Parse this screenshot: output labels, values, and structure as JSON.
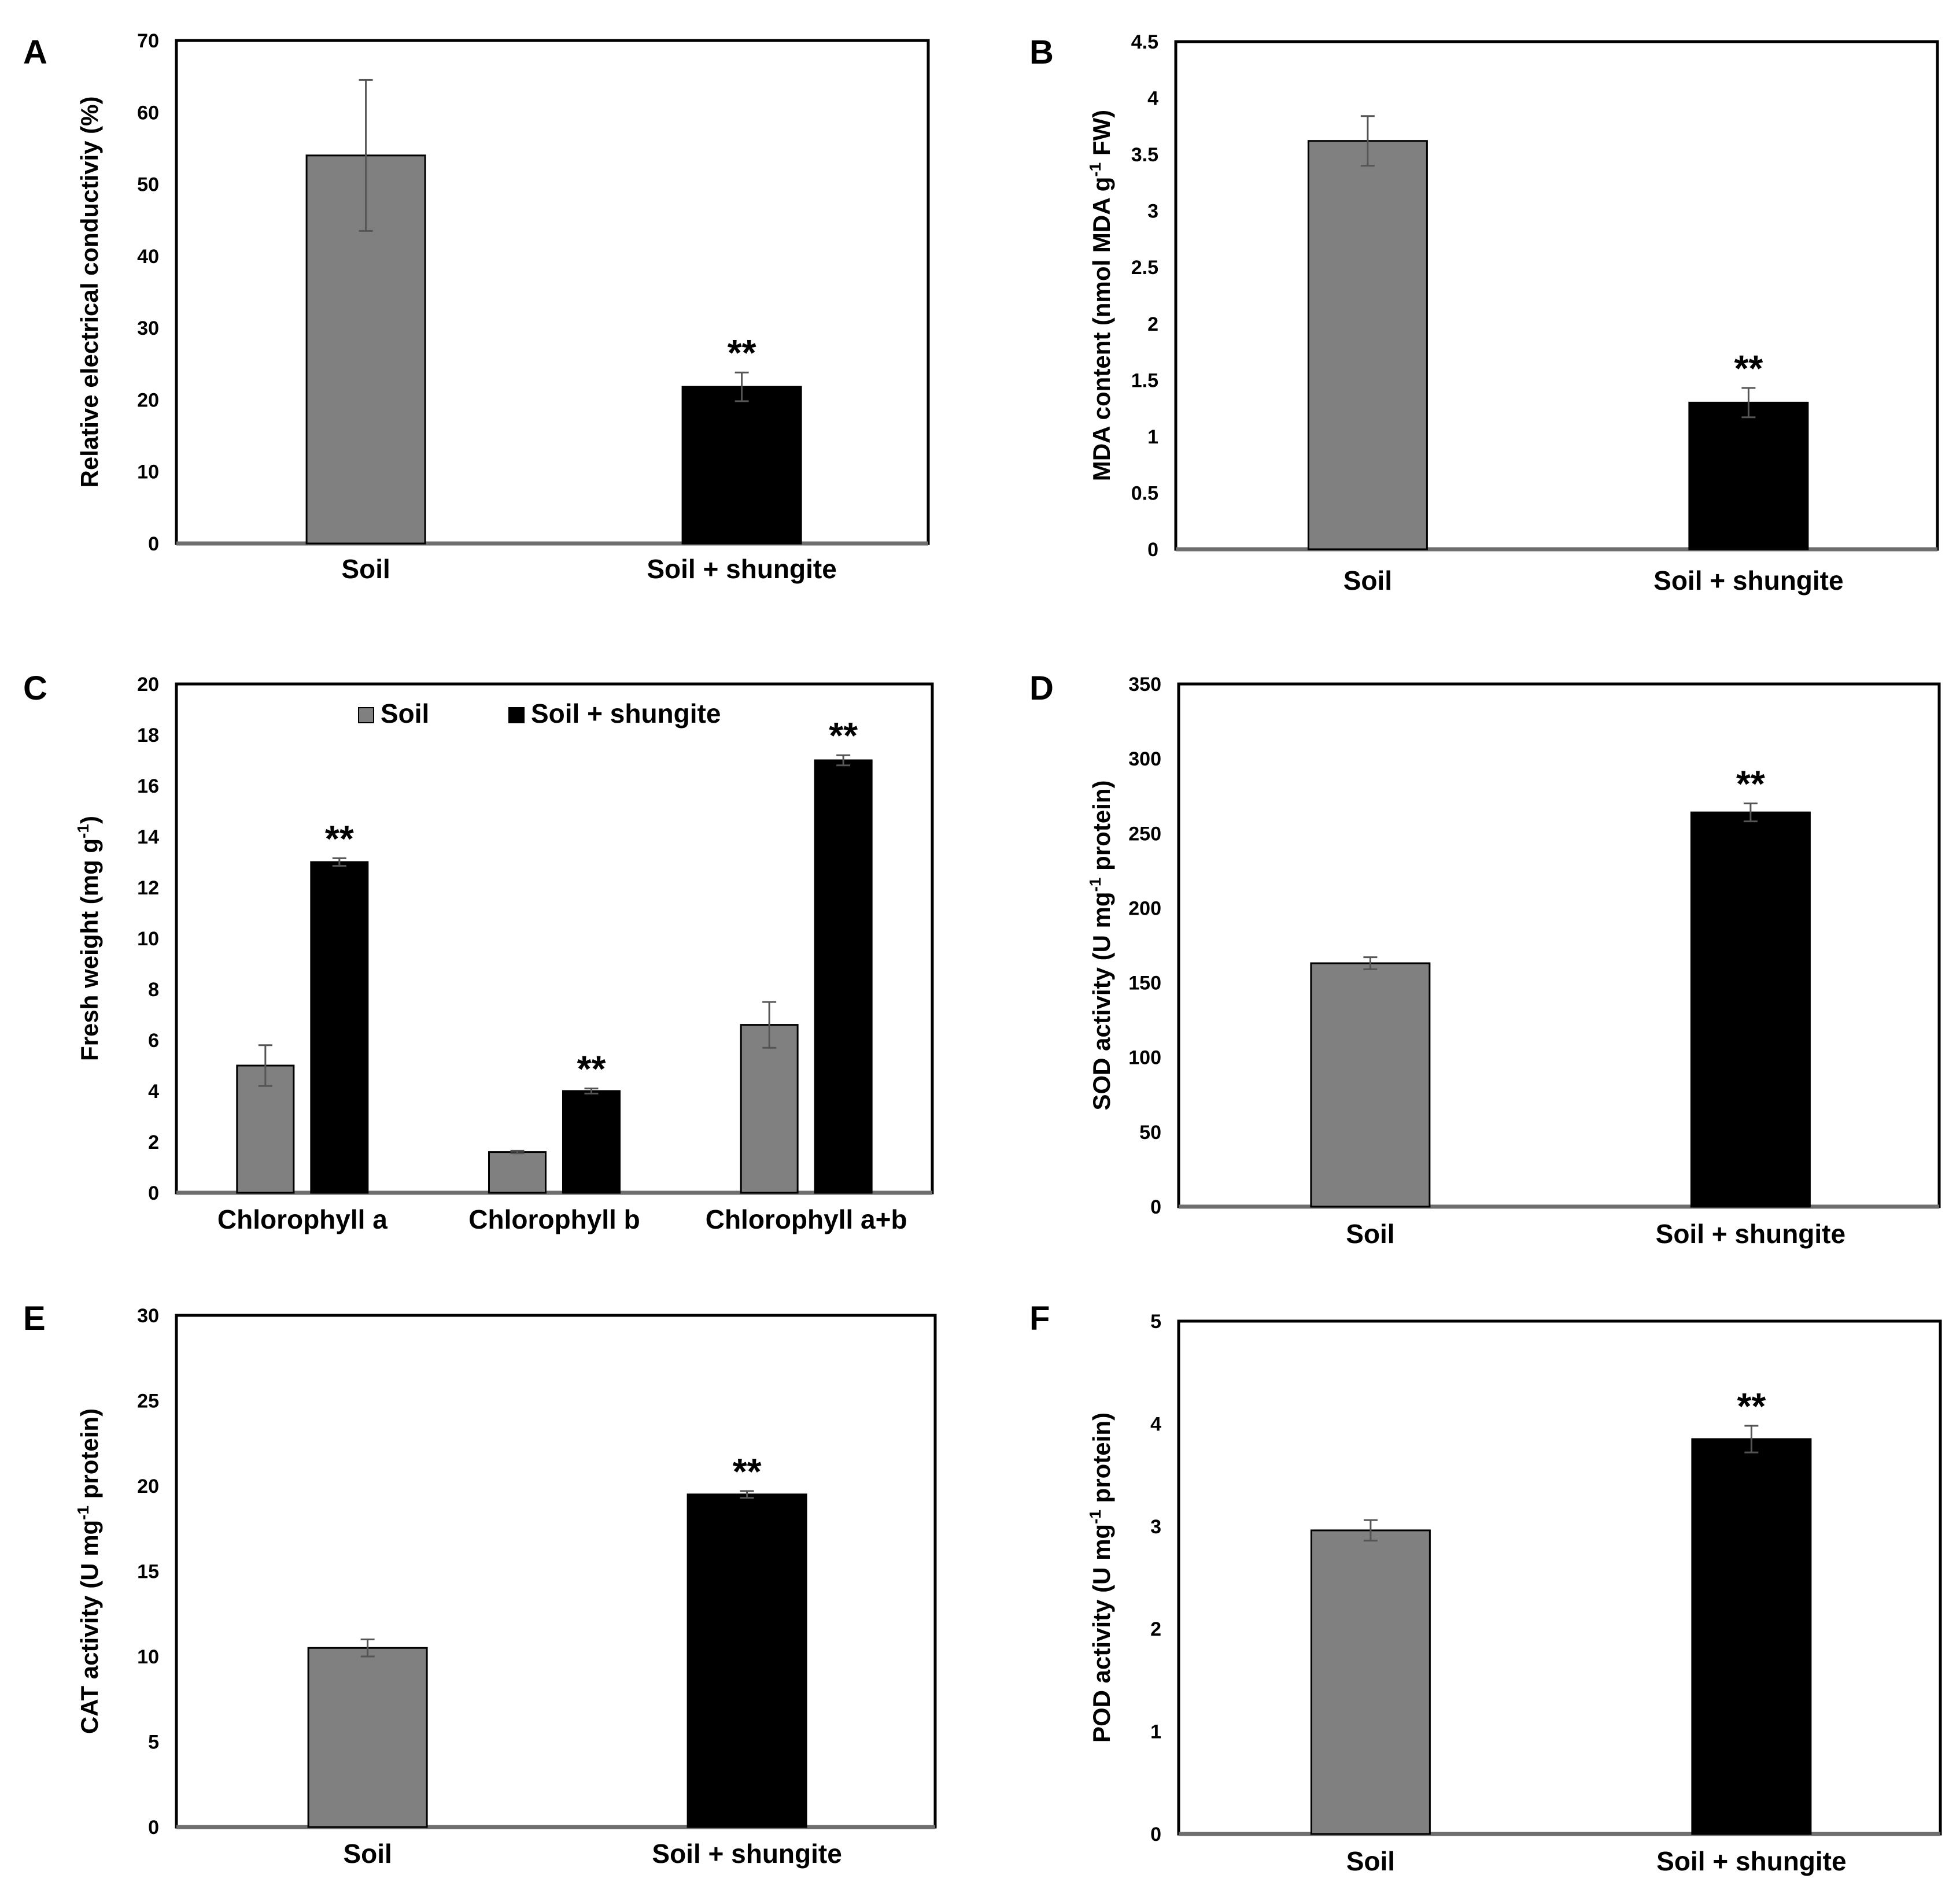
{
  "figure": {
    "colors": {
      "soil": "#808080",
      "soil_shungite": "#000000",
      "axis": "#000000",
      "frame": "#000000"
    },
    "significance_marker": "**"
  },
  "chart_data": [
    {
      "panel": "A",
      "type": "bar",
      "ylabel": "Relative electrical conductiviy (%)",
      "ylabel_sup": "",
      "ylabel_post": "",
      "ylim": [
        0,
        70
      ],
      "yticks": [
        "0",
        "10",
        "20",
        "30",
        "40",
        "50",
        "60",
        "70"
      ],
      "categories": [
        "Soil",
        "Soil + shungite"
      ],
      "series": [
        {
          "name": "Soil",
          "color": "#808080",
          "values": [
            54,
            null
          ],
          "errors": [
            10.5,
            null
          ],
          "significance": [
            false,
            false
          ]
        },
        {
          "name": "Soil + shungite",
          "color": "#000000",
          "values": [
            null,
            21.8
          ],
          "errors": [
            null,
            2.0
          ],
          "significance": [
            false,
            true
          ]
        }
      ],
      "legend": null
    },
    {
      "panel": "B",
      "type": "bar",
      "ylabel": "MDA content (nmol MDA g",
      "ylabel_sup": "-1",
      "ylabel_post": " FW)",
      "ylim": [
        0,
        4.5
      ],
      "yticks": [
        "0",
        "0.5",
        "1",
        "1.5",
        "2",
        "2.5",
        "3",
        "3.5",
        "4",
        "4.5"
      ],
      "categories": [
        "Soil",
        "Soil + shungite"
      ],
      "series": [
        {
          "name": "Soil",
          "color": "#808080",
          "values": [
            3.62,
            null
          ],
          "errors": [
            0.22,
            null
          ],
          "significance": [
            false,
            false
          ]
        },
        {
          "name": "Soil + shungite",
          "color": "#000000",
          "values": [
            null,
            1.3
          ],
          "errors": [
            null,
            0.13
          ],
          "significance": [
            false,
            true
          ]
        }
      ],
      "legend": null
    },
    {
      "panel": "C",
      "type": "bar",
      "ylabel": "Fresh weight (mg g",
      "ylabel_sup": "-1",
      "ylabel_post": ")",
      "ylim": [
        0,
        20
      ],
      "yticks": [
        "0",
        "2",
        "4",
        "6",
        "8",
        "10",
        "12",
        "14",
        "16",
        "18",
        "20"
      ],
      "categories": [
        "Chlorophyll a",
        "Chlorophyll b",
        "Chlorophyll a+b"
      ],
      "series": [
        {
          "name": "Soil",
          "color": "#808080",
          "values": [
            5.0,
            1.6,
            6.6
          ],
          "errors": [
            0.8,
            0.05,
            0.9
          ],
          "significance": [
            false,
            false,
            false
          ]
        },
        {
          "name": "Soil + shungite",
          "color": "#000000",
          "values": [
            13.0,
            4.0,
            17.0
          ],
          "errors": [
            0.15,
            0.1,
            0.2
          ],
          "significance": [
            true,
            true,
            true
          ]
        }
      ],
      "legend": {
        "placement": "top-center",
        "items": [
          "Soil",
          "Soil + shungite"
        ]
      }
    },
    {
      "panel": "D",
      "type": "bar",
      "ylabel": "SOD activity (U mg",
      "ylabel_sup": "-1",
      "ylabel_post": " protein)",
      "ylim": [
        0,
        350
      ],
      "yticks": [
        "0",
        "50",
        "100",
        "150",
        "200",
        "250",
        "300",
        "350"
      ],
      "categories": [
        "Soil",
        "Soil + shungite"
      ],
      "series": [
        {
          "name": "Soil",
          "color": "#808080",
          "values": [
            163,
            null
          ],
          "errors": [
            4,
            null
          ],
          "significance": [
            false,
            false
          ]
        },
        {
          "name": "Soil + shungite",
          "color": "#000000",
          "values": [
            null,
            264
          ],
          "errors": [
            null,
            6
          ],
          "significance": [
            false,
            true
          ]
        }
      ],
      "legend": null
    },
    {
      "panel": "E",
      "type": "bar",
      "ylabel": "CAT activity (U mg",
      "ylabel_sup": "-1",
      "ylabel_post": " protein)",
      "ylim": [
        0,
        30
      ],
      "yticks": [
        "0",
        "5",
        "10",
        "15",
        "20",
        "25",
        "30"
      ],
      "categories": [
        "Soil",
        "Soil + shungite"
      ],
      "series": [
        {
          "name": "Soil",
          "color": "#808080",
          "values": [
            10.5,
            null
          ],
          "errors": [
            0.5,
            null
          ],
          "significance": [
            false,
            false
          ]
        },
        {
          "name": "Soil + shungite",
          "color": "#000000",
          "values": [
            null,
            19.5
          ],
          "errors": [
            null,
            0.2
          ],
          "significance": [
            false,
            true
          ]
        }
      ],
      "legend": null
    },
    {
      "panel": "F",
      "type": "bar",
      "ylabel": "POD activity (U mg",
      "ylabel_sup": "-1",
      "ylabel_post": " protein)",
      "ylim": [
        0,
        5
      ],
      "yticks": [
        "0",
        "1",
        "2",
        "3",
        "4",
        "5"
      ],
      "categories": [
        "Soil",
        "Soil + shungite"
      ],
      "series": [
        {
          "name": "Soil",
          "color": "#808080",
          "values": [
            2.96,
            null
          ],
          "errors": [
            0.1,
            null
          ],
          "significance": [
            false,
            false
          ]
        },
        {
          "name": "Soil + shungite",
          "color": "#000000",
          "values": [
            null,
            3.85
          ],
          "errors": [
            null,
            0.13
          ],
          "significance": [
            false,
            true
          ]
        }
      ],
      "legend": null
    }
  ]
}
